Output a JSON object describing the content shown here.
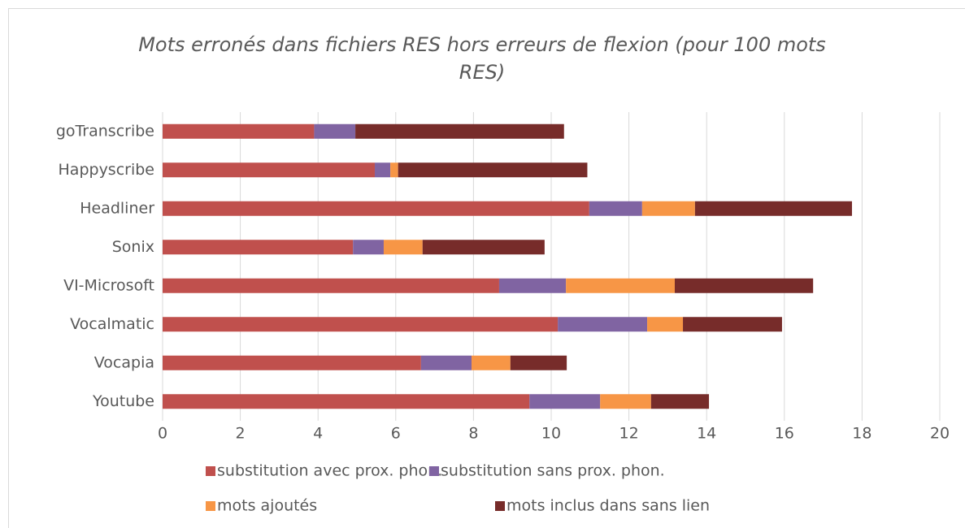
{
  "chart_data": {
    "type": "stacked_barh",
    "title": "Mots erronés dans fichiers RES hors erreurs de flexion (pour 100 mots RES)",
    "categories": [
      "goTranscribe",
      "Happyscribe",
      "Headliner",
      "Sonix",
      "VI-Microsoft",
      "Vocalmatic",
      "Vocapia",
      "Youtube"
    ],
    "series": [
      {
        "name": "substitution avec prox. phon.",
        "color": "#c0504d",
        "values": [
          3.9,
          5.46,
          10.98,
          4.9,
          8.66,
          10.17,
          6.65,
          9.44
        ]
      },
      {
        "name": "substitution sans prox. phon.",
        "color": "#8064a2",
        "values": [
          1.06,
          0.4,
          1.36,
          0.79,
          1.72,
          2.3,
          1.3,
          1.82
        ]
      },
      {
        "name": "mots ajoutés",
        "color": "#f79646",
        "values": [
          0,
          0.2,
          1.36,
          1.0,
          2.8,
          0.92,
          1.0,
          1.31
        ]
      },
      {
        "name": "mots inclus dans sans lien",
        "color": "#772c2a",
        "values": [
          5.37,
          4.87,
          4.04,
          3.14,
          3.56,
          2.55,
          1.45,
          1.49
        ]
      }
    ],
    "xlim": [
      0,
      20
    ],
    "xticks": [
      0,
      2,
      4,
      6,
      8,
      10,
      12,
      14,
      16,
      18,
      20
    ],
    "grid": true,
    "legend": "bottom"
  }
}
